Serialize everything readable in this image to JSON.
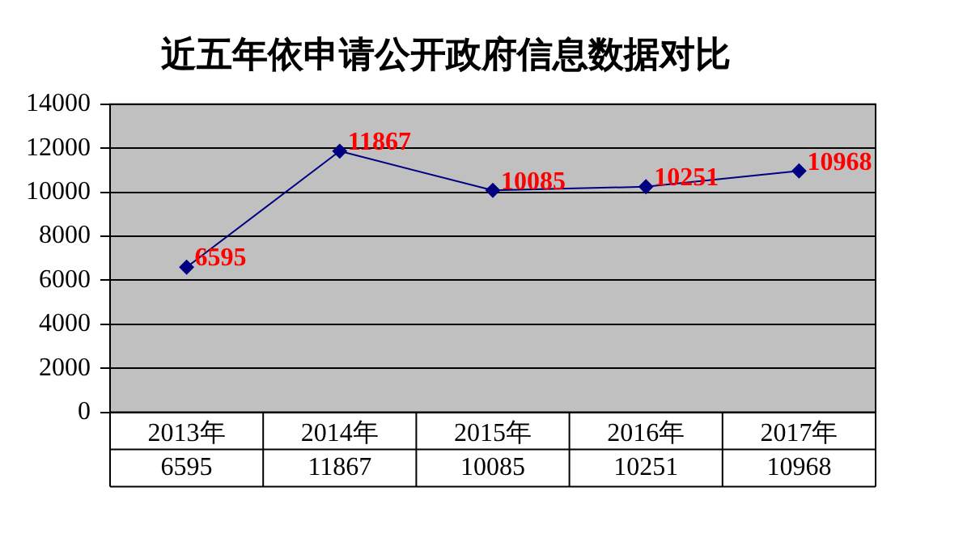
{
  "chart_data": {
    "type": "line",
    "title": "近五年依申请公开政府信息数据对比",
    "categories": [
      "2013年",
      "2014年",
      "2015年",
      "2016年",
      "2017年"
    ],
    "series": [
      {
        "color": "#000080",
        "values": [
          6595,
          11867,
          10085,
          10251,
          10968
        ],
        "value_labels": [
          "6595",
          "11867",
          "10085",
          "10251",
          "10968"
        ]
      }
    ],
    "ylim": [
      0,
      14000
    ],
    "yticks": [
      0,
      2000,
      4000,
      6000,
      8000,
      10000,
      12000,
      14000
    ],
    "annotations": [
      "6595",
      "11867",
      "10085",
      "10251",
      "10968"
    ],
    "grid": "y",
    "legend": false,
    "marker": "diamond",
    "line_style": "solid"
  }
}
